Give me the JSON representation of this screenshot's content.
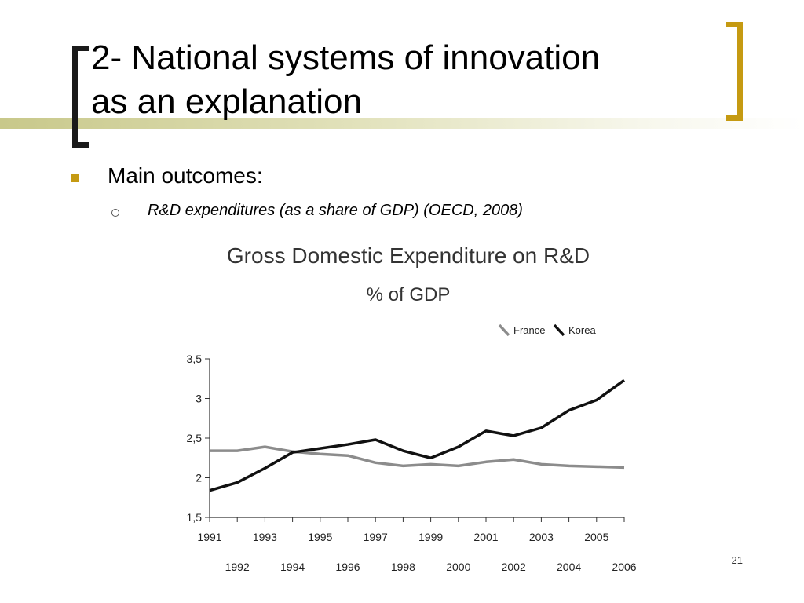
{
  "slide": {
    "title_line1": "2- National systems of innovation",
    "title_line2": "as an explanation",
    "bullet": "Main outcomes:",
    "sub_bullet": "R&D expenditures (as a share of GDP) (OECD, 2008)",
    "page_number": "21"
  },
  "colors": {
    "accent": "#c59a12",
    "france": "#8c8c8c",
    "korea": "#111111"
  },
  "chart_data": {
    "type": "line",
    "title": "Gross Domestic Expenditure on R&D",
    "subtitle": "% of GDP",
    "xlabel": "",
    "ylabel": "",
    "x": [
      1991,
      1992,
      1993,
      1994,
      1995,
      1996,
      1997,
      1998,
      1999,
      2000,
      2001,
      2002,
      2003,
      2004,
      2005,
      2006
    ],
    "x_tick_labels_top": [
      "1991",
      "1993",
      "1995",
      "1997",
      "1999",
      "2001",
      "2003",
      "2005"
    ],
    "x_tick_labels_bottom": [
      "1992",
      "1994",
      "1996",
      "1998",
      "2000",
      "2002",
      "2004",
      "2006"
    ],
    "y_ticks": [
      "1,5",
      "2",
      "2,5",
      "3",
      "3,5"
    ],
    "ylim": [
      1.5,
      3.5
    ],
    "legend_position": "top-right",
    "grid": false,
    "series": [
      {
        "name": "France",
        "values": [
          2.34,
          2.34,
          2.39,
          2.33,
          2.3,
          2.28,
          2.19,
          2.15,
          2.17,
          2.15,
          2.2,
          2.23,
          2.17,
          2.15,
          2.14,
          2.13
        ]
      },
      {
        "name": "Korea",
        "values": [
          1.84,
          1.94,
          2.12,
          2.32,
          2.37,
          2.42,
          2.48,
          2.34,
          2.25,
          2.39,
          2.59,
          2.53,
          2.63,
          2.85,
          2.98,
          3.23
        ]
      }
    ]
  }
}
